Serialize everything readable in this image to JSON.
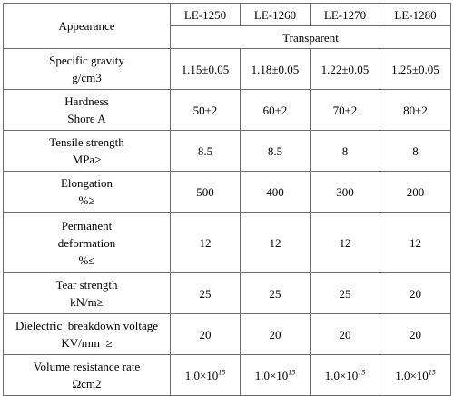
{
  "table": {
    "header": {
      "appearance_label": "Appearance",
      "models": [
        "LE-1250",
        "LE-1260",
        "LE-1270",
        "LE-1280"
      ],
      "appearance_value": "Transparent"
    },
    "rows": [
      {
        "label_lines": [
          "Specific gravity",
          "g/cm3"
        ],
        "values": [
          "1.15±0.05",
          "1.18±0.05",
          "1.22±0.05",
          "1.25±0.05"
        ]
      },
      {
        "label_lines": [
          "Hardness",
          "Shore A"
        ],
        "values": [
          "50±2",
          "60±2",
          "70±2",
          "80±2"
        ]
      },
      {
        "label_lines": [
          "Tensile strength",
          "MPa≥"
        ],
        "values": [
          "8.5",
          "8.5",
          "8",
          "8"
        ]
      },
      {
        "label_lines": [
          "Elongation",
          "%≥"
        ],
        "values": [
          "500",
          "400",
          "300",
          "200"
        ]
      },
      {
        "label_lines": [
          "Permanent",
          "deformation",
          "%≤"
        ],
        "values": [
          "12",
          "12",
          "12",
          "12"
        ]
      },
      {
        "label_lines": [
          "Tear strength",
          "kN/m≥"
        ],
        "values": [
          "25",
          "25",
          "25",
          "20"
        ]
      },
      {
        "label_lines": [
          "Dielectric  breakdown voltage",
          "KV/mm  ≥"
        ],
        "values": [
          "20",
          "20",
          "20",
          "20"
        ]
      },
      {
        "label_lines": [
          "Volume resistance rate",
          "Ωcm2"
        ],
        "values": [
          {
            "base": "1.0×10",
            "exp": "15"
          },
          {
            "base": "1.0×10",
            "exp": "15"
          },
          {
            "base": "1.0×10",
            "exp": "15"
          },
          {
            "base": "1.0×10",
            "exp": "15"
          }
        ]
      }
    ]
  }
}
